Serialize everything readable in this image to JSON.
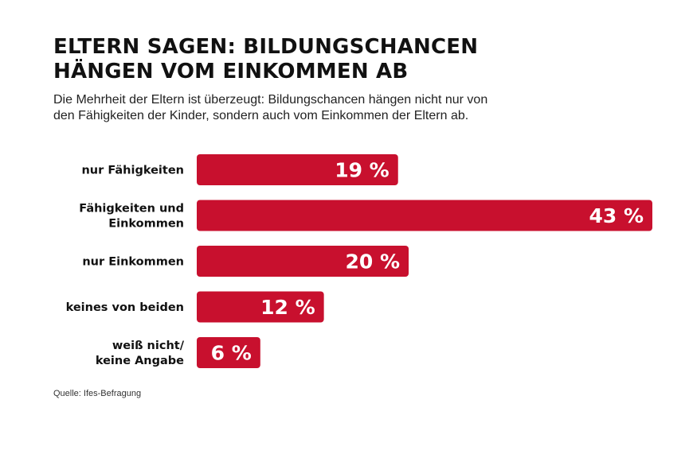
{
  "header": {
    "title_lines": [
      "ELTERN SAGEN: BILDUNGSCHANCEN",
      "HÄNGEN VOM EINKOMMEN AB"
    ],
    "subtitle_lines": [
      "Die Mehrheit der Eltern ist überzeugt: Bildungschancen hängen nicht nur von",
      "den Fähigkeiten der Kinder, sondern auch vom Einkommen der Eltern ab."
    ]
  },
  "chart_data": {
    "type": "bar",
    "orientation": "horizontal",
    "categories": [
      [
        "nur Fähigkeiten"
      ],
      [
        "Fähigkeiten und",
        "Einkommen"
      ],
      [
        "nur Einkommen"
      ],
      [
        "keines von beiden"
      ],
      [
        "weiß nicht/",
        "keine Angabe"
      ]
    ],
    "values": [
      19,
      43,
      20,
      12,
      6
    ],
    "value_labels": [
      "19 %",
      "43 %",
      "20 %",
      "12 %",
      "6 %"
    ],
    "unit": "%",
    "bar_color": "#c8102e",
    "label_color": "#ffffff",
    "xlim": [
      0,
      43
    ],
    "grid": false,
    "legend": "none"
  },
  "footer": {
    "source": "Quelle: Ifes-Befragung"
  }
}
